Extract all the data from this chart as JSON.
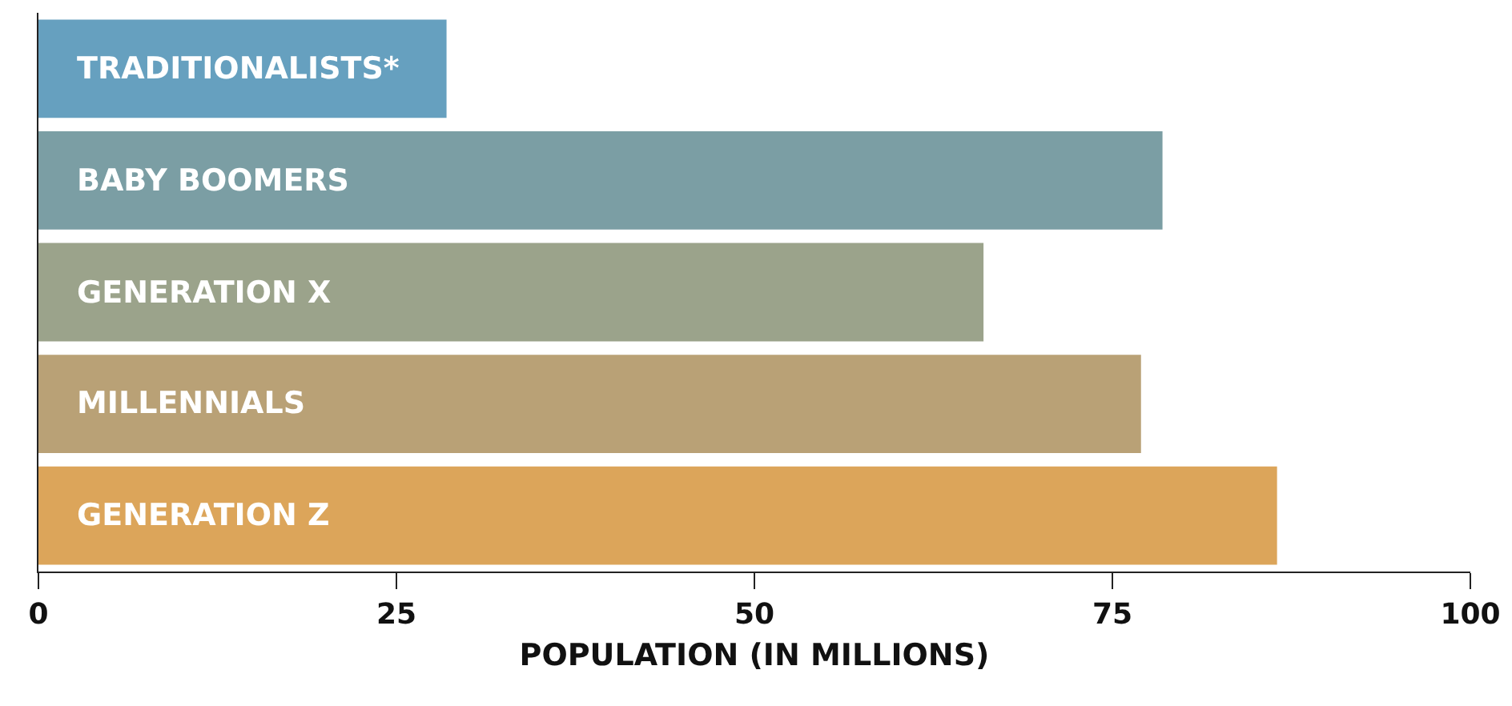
{
  "chart_data": {
    "type": "bar",
    "orientation": "horizontal",
    "xlabel": "POPULATION (IN MILLIONS)",
    "categories": [
      "TRADITIONALISTS*",
      "BABY BOOMERS",
      "GENERATION X",
      "MILLENNIALS",
      "GENERATION Z"
    ],
    "values": [
      28.5,
      78.5,
      66,
      77,
      86.5
    ],
    "colors": [
      "#66a0bf",
      "#7b9ea4",
      "#9ba38b",
      "#b9a176",
      "#dca55a"
    ],
    "xlim": [
      0,
      100
    ],
    "xticks": [
      0,
      25,
      50,
      75,
      100
    ]
  }
}
